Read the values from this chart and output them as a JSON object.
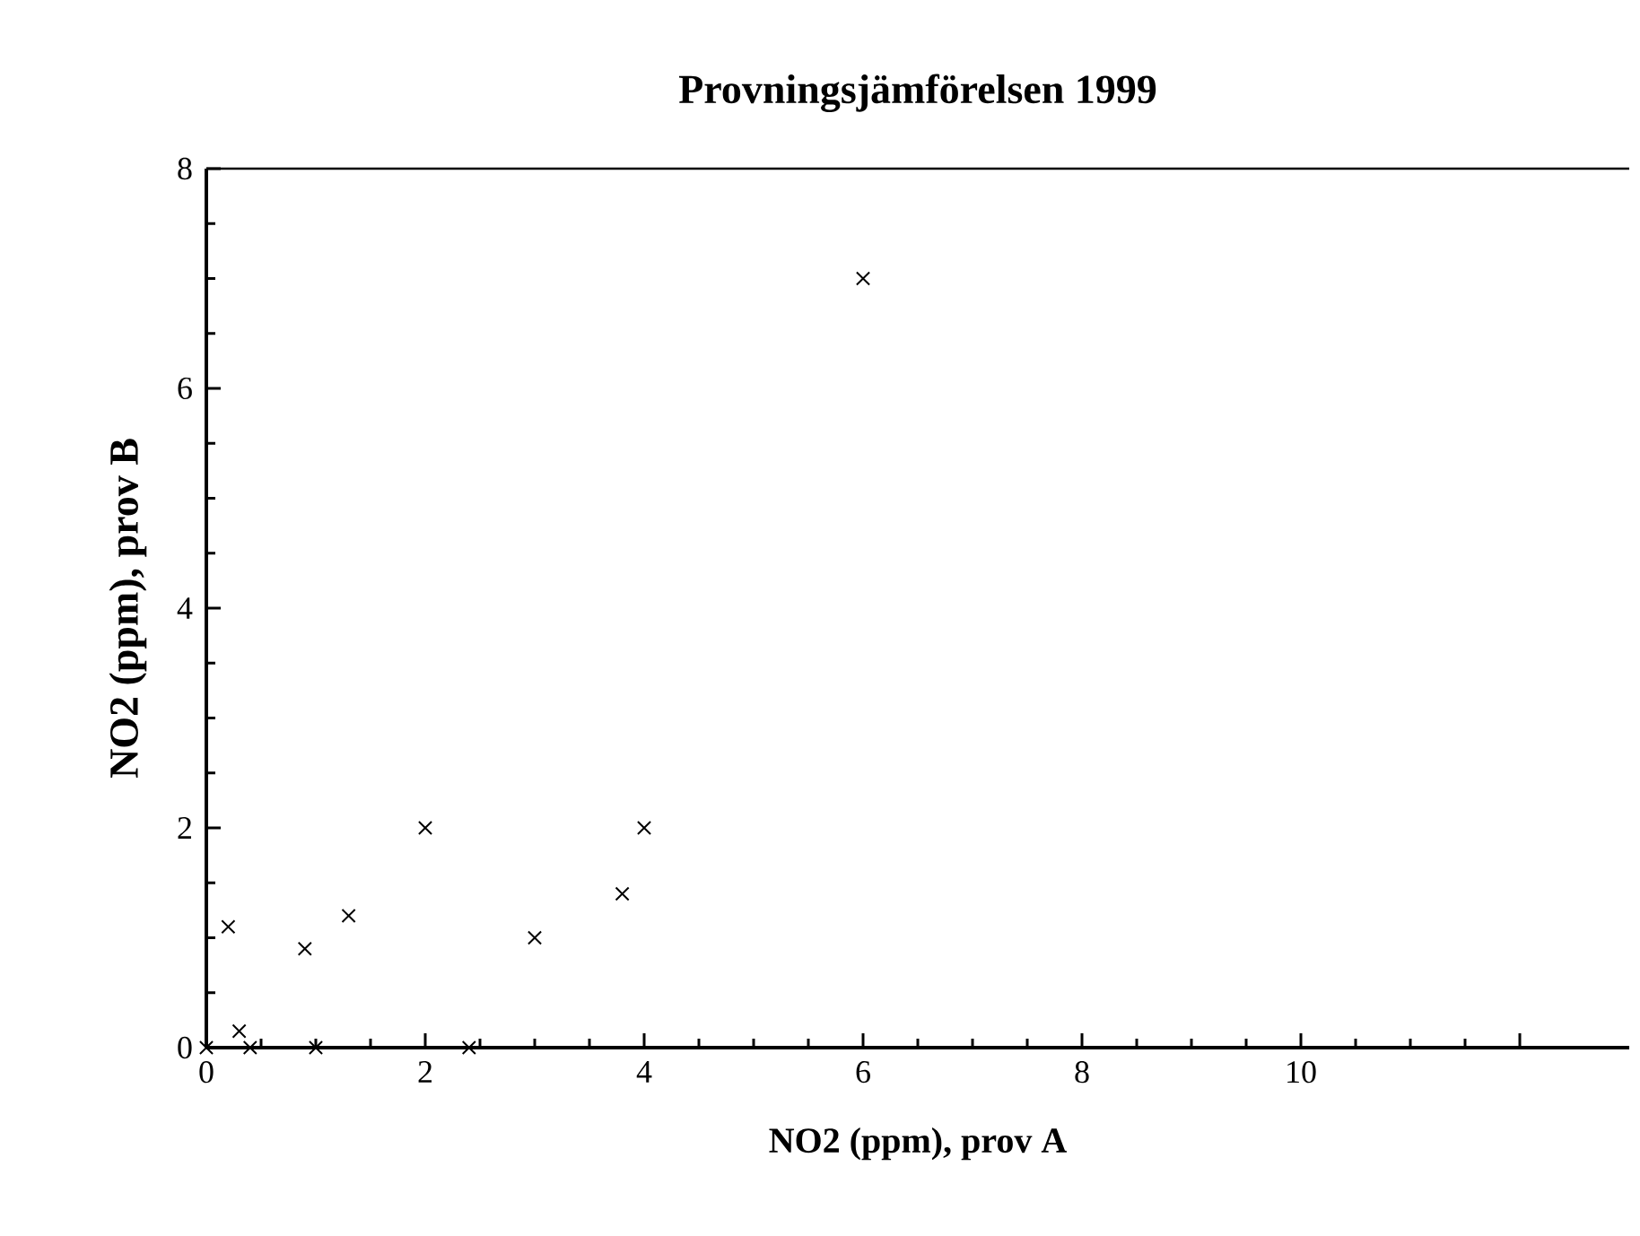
{
  "chart_data": {
    "type": "scatter",
    "title": "Provningsjämförelsen 1999",
    "xlabel": "NO2 (ppm), prov A",
    "ylabel": "NO2 (ppm), prov B",
    "x": [
      0,
      0.2,
      0.3,
      0.4,
      0.9,
      1.0,
      1.3,
      2,
      2.4,
      3,
      3.8,
      4,
      6
    ],
    "values": [
      0,
      1.1,
      0.15,
      0,
      0.9,
      0,
      1.2,
      2,
      0,
      1,
      1.4,
      2,
      7
    ],
    "color": "#000000",
    "marker": "cross",
    "grid": false,
    "xlim": [
      0,
      13
    ],
    "xticks": [
      0,
      2,
      4,
      6,
      8,
      10,
      {
        "value": 12,
        "label": null
      }
    ],
    "ylim": [
      0,
      8
    ],
    "yticks": [
      0,
      2,
      4,
      6,
      8
    ]
  }
}
